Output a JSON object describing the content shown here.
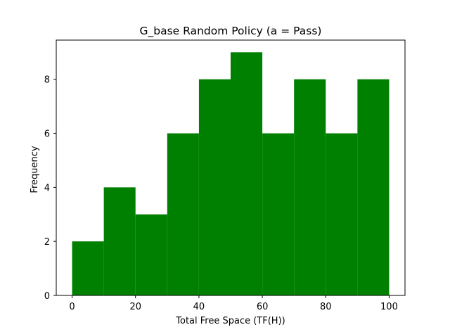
{
  "chart_data": {
    "type": "bar",
    "title": "G_base Random Policy (a = Pass)",
    "xlabel": "Total Free Space (TF(H))",
    "ylabel": "Frequency",
    "xlim": [
      -5,
      105
    ],
    "ylim": [
      0,
      9.45
    ],
    "xticks": [
      0,
      20,
      40,
      60,
      80,
      100
    ],
    "yticks": [
      0,
      2,
      4,
      6,
      8
    ],
    "bin_edges": [
      0,
      10,
      20,
      30,
      40,
      50,
      60,
      70,
      80,
      90,
      100
    ],
    "values": [
      2,
      4,
      3,
      6,
      8,
      9,
      6,
      8,
      6,
      8
    ],
    "bar_color": "#008000",
    "grid": false,
    "legend": "none"
  }
}
